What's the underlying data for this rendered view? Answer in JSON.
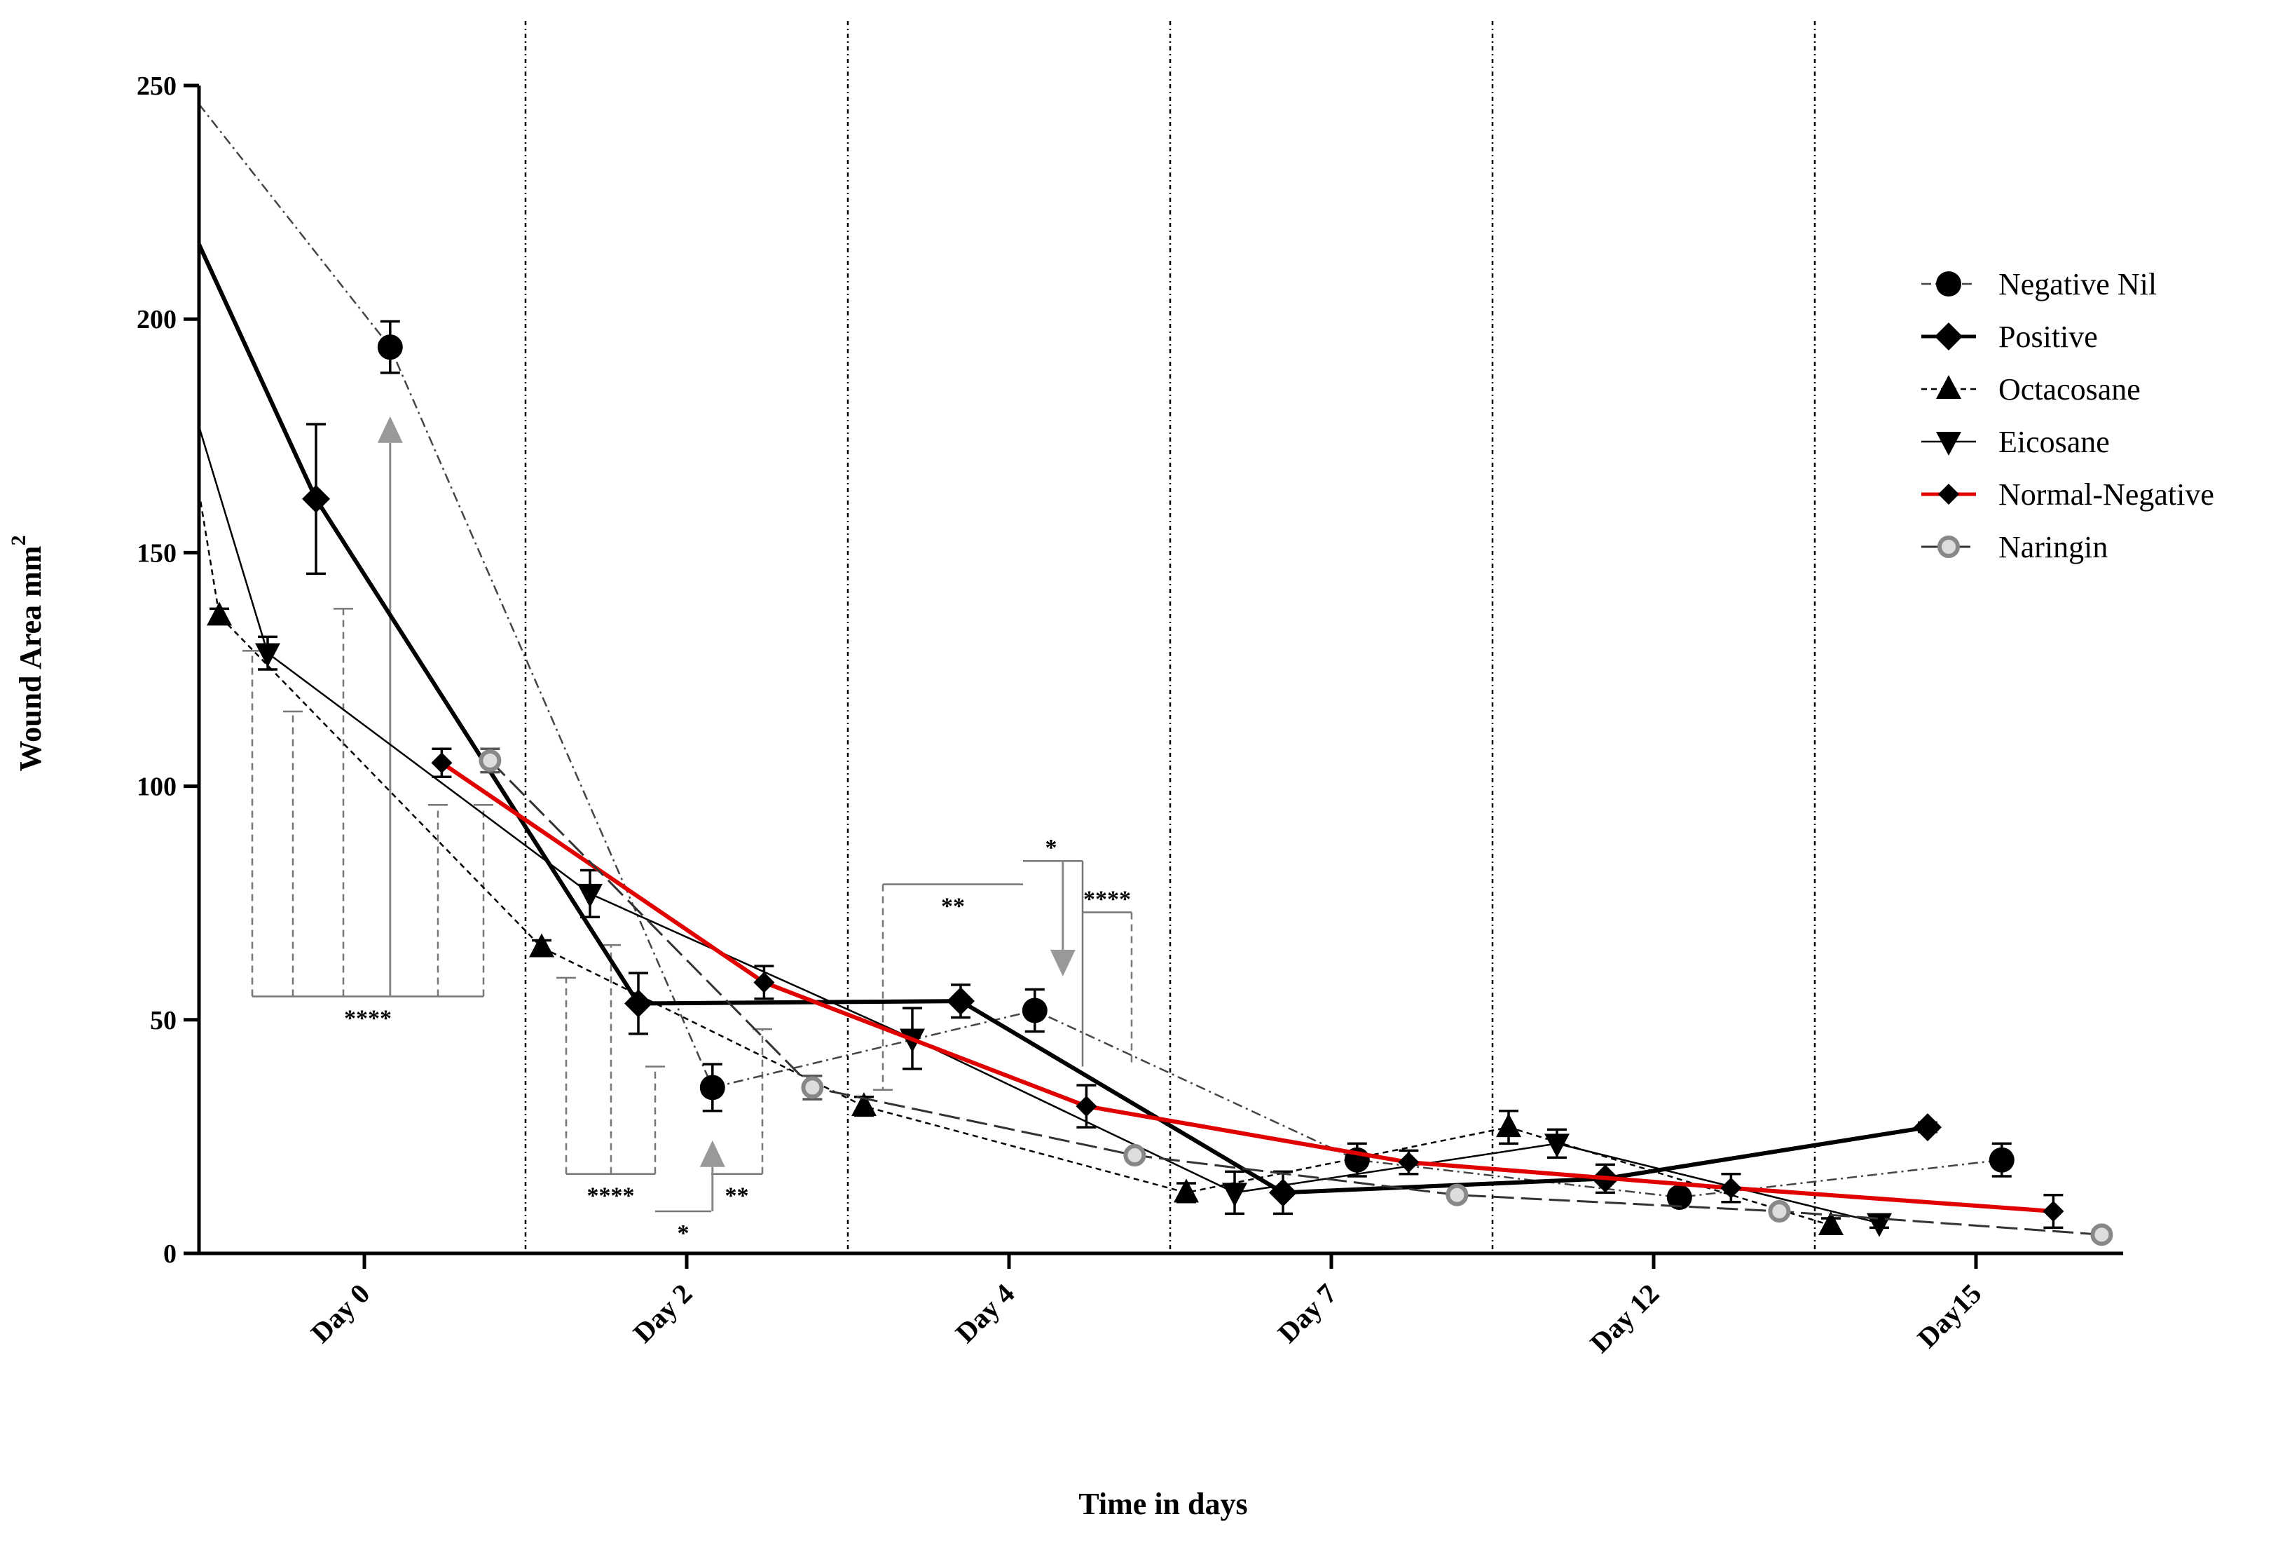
{
  "chart_data": {
    "type": "line",
    "title": "",
    "xlabel": "Time in days",
    "ylabel": "Wound Area mm",
    "ylabel_superscript": "2",
    "ylim": [
      0,
      250
    ],
    "yticks": [
      0,
      50,
      100,
      150,
      200,
      250
    ],
    "categories": [
      "Day 0",
      "Day 2",
      "Day 4",
      "Day 7",
      "Day 12",
      "Day15"
    ],
    "series": [
      {
        "name": "Negative Nil",
        "color": "#000000",
        "marker": "circle",
        "line": "dashdot",
        "offset": 0.08,
        "values": [
          194,
          35.5,
          52,
          20,
          12,
          20
        ],
        "errors": [
          5.5,
          5,
          4.5,
          3.5,
          1.5,
          3.5
        ]
      },
      {
        "name": "Positive",
        "color": "#000000",
        "marker": "diamond",
        "line": "bold",
        "offset": -0.15,
        "values": [
          161.5,
          53.5,
          54,
          13,
          16,
          27
        ],
        "errors": [
          16,
          6.5,
          3.5,
          4.5,
          3,
          1
        ]
      },
      {
        "name": "Octacosane",
        "color": "#000000",
        "marker": "triangle-up",
        "line": "dashed",
        "offset": -0.45,
        "values": [
          136.5,
          65.5,
          31.5,
          13,
          27,
          6
        ],
        "errors": [
          1.5,
          1.5,
          2,
          2,
          3.5,
          1.5
        ]
      },
      {
        "name": "Eicosane",
        "color": "#000000",
        "marker": "triangle-down",
        "line": "thin",
        "offset": -0.3,
        "values": [
          128.5,
          77,
          46,
          13,
          23.5,
          6.5
        ],
        "errors": [
          3.5,
          5,
          6.5,
          4.5,
          3,
          1
        ]
      },
      {
        "name": "Normal-Negative",
        "color": "#e00000",
        "marker": "diamond-small",
        "line": "red",
        "offset": 0.24,
        "values": [
          105,
          58,
          31.5,
          19.5,
          14,
          9
        ],
        "errors": [
          3,
          3.5,
          4.5,
          2.5,
          3,
          3.5
        ]
      },
      {
        "name": "Naringin",
        "color": "#999999",
        "marker": "circle-open",
        "line": "dashed-long",
        "offset": 0.39,
        "values": [
          105.5,
          35.5,
          21,
          12.5,
          9,
          4
        ],
        "errors": [
          2.5,
          2.5,
          1,
          1,
          1,
          1
        ]
      }
    ],
    "annotations": {
      "significance": [
        "****",
        "****",
        "*",
        "**",
        "**",
        "*",
        "****"
      ],
      "gray_markers": "Negative Nil comparison arrows at Day 0, Day 2 and Day 4"
    },
    "legend_position": "top-right",
    "grid": false,
    "group_separators": "dotted vertical lines between day groups"
  }
}
